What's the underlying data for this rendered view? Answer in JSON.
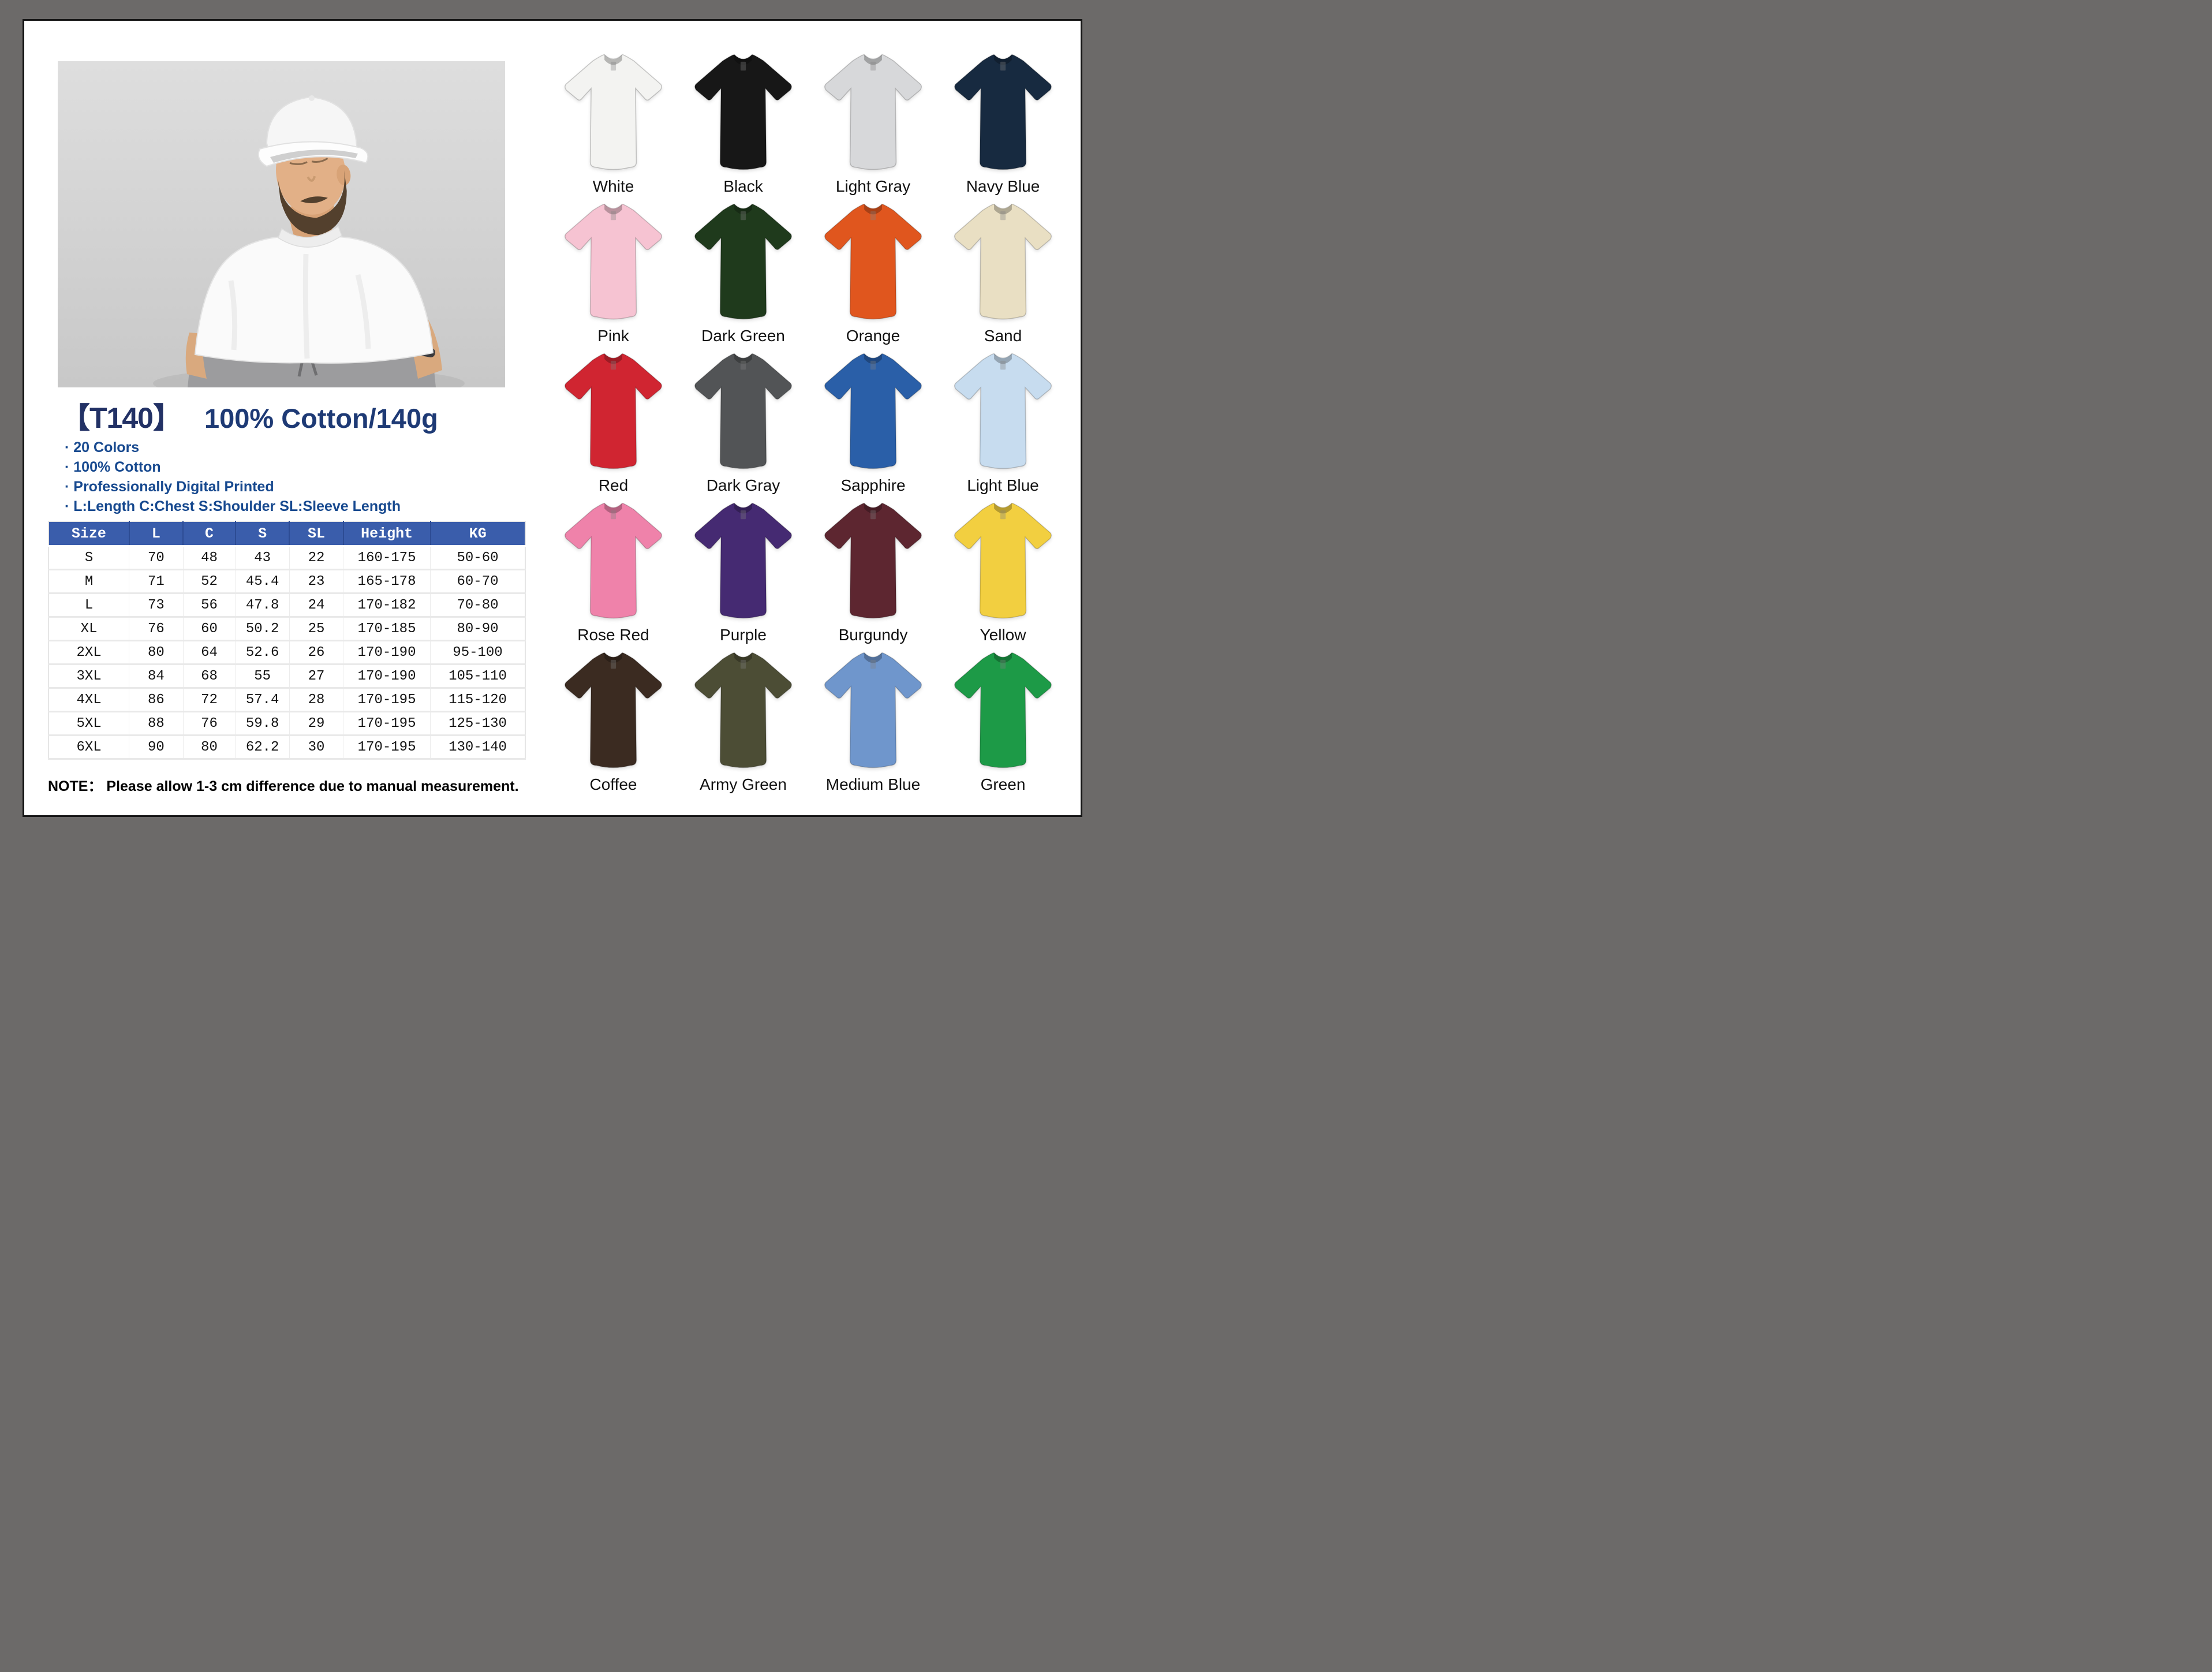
{
  "product": {
    "code": "【T140】",
    "subtitle": "100% Cotton/140g",
    "features": [
      "20 Colors",
      "100% Cotton",
      "Professionally Digital Printed",
      "L:Length C:Chest S:Shoulder SL:Sleeve Length"
    ],
    "note": "NOTE： Please allow 1-3 cm difference due to manual measurement."
  },
  "size_table": {
    "headers": [
      "Size",
      "L",
      "C",
      "S",
      "SL",
      "Height",
      "KG"
    ],
    "rows": [
      [
        "S",
        "70",
        "48",
        "43",
        "22",
        "160-175",
        "50-60"
      ],
      [
        "M",
        "71",
        "52",
        "45.4",
        "23",
        "165-178",
        "60-70"
      ],
      [
        "L",
        "73",
        "56",
        "47.8",
        "24",
        "170-182",
        "70-80"
      ],
      [
        "XL",
        "76",
        "60",
        "50.2",
        "25",
        "170-185",
        "80-90"
      ],
      [
        "2XL",
        "80",
        "64",
        "52.6",
        "26",
        "170-190",
        "95-100"
      ],
      [
        "3XL",
        "84",
        "68",
        "55",
        "27",
        "170-190",
        "105-110"
      ],
      [
        "4XL",
        "86",
        "72",
        "57.4",
        "28",
        "170-195",
        "115-120"
      ],
      [
        "5XL",
        "88",
        "76",
        "59.8",
        "29",
        "170-195",
        "125-130"
      ],
      [
        "6XL",
        "90",
        "80",
        "62.2",
        "30",
        "170-195",
        "130-140"
      ]
    ]
  },
  "colors": [
    {
      "label": "White",
      "hex": "#f3f3f1"
    },
    {
      "label": "Black",
      "hex": "#171717"
    },
    {
      "label": "Light Gray",
      "hex": "#d7d8da"
    },
    {
      "label": "Navy Blue",
      "hex": "#172a40"
    },
    {
      "label": "Pink",
      "hex": "#f6c3d2"
    },
    {
      "label": "Dark Green",
      "hex": "#1f3a1c"
    },
    {
      "label": "Orange",
      "hex": "#e0561e"
    },
    {
      "label": "Sand",
      "hex": "#e9dfc3"
    },
    {
      "label": "Red",
      "hex": "#d02531"
    },
    {
      "label": "Dark Gray",
      "hex": "#525456"
    },
    {
      "label": "Sapphire",
      "hex": "#2a5fa8"
    },
    {
      "label": "Light Blue",
      "hex": "#c7dcef"
    },
    {
      "label": "Rose Red",
      "hex": "#ef82aa"
    },
    {
      "label": "Purple",
      "hex": "#452a72"
    },
    {
      "label": "Burgundy",
      "hex": "#5d2630"
    },
    {
      "label": "Yellow",
      "hex": "#f2cf40"
    },
    {
      "label": "Coffee",
      "hex": "#3b2b21"
    },
    {
      "label": "Army Green",
      "hex": "#4c4d35"
    },
    {
      "label": "Medium Blue",
      "hex": "#6f96cc"
    },
    {
      "label": "Green",
      "hex": "#1d9a47"
    }
  ],
  "theme": {
    "frame_color": "#6c6a69",
    "page_bg": "#ffffff",
    "title_color": "#223165",
    "subtitle_color": "#1e3a75",
    "feature_color": "#17498f",
    "table_header_bg": "#3a5dab",
    "table_header_text": "#ffffff",
    "note_color": "#000000",
    "photo_bg": "#d5d5d5"
  }
}
